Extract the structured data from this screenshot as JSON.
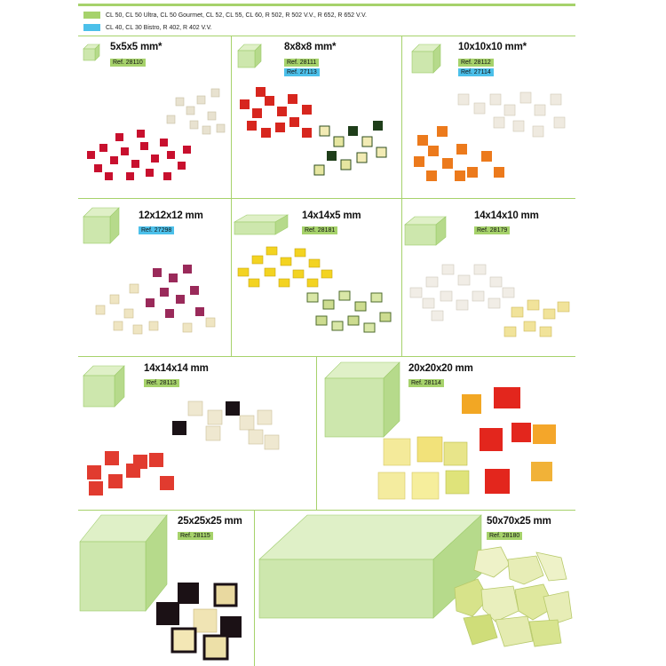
{
  "legend": [
    {
      "color": "#a6d26b",
      "text": "CL 50, CL 50 Ultra, CL 50 Gourmet, CL 52, CL 55, CL 60, R 502, R 502 V.V., R 652, R 652 V.V."
    },
    {
      "color": "#4cc0ea",
      "text": "CL 40, CL 30 Bistro, R 402, R 402 V.V."
    }
  ],
  "cells": [
    {
      "id": "c1",
      "size": "5x5x5 mm*",
      "refs": [
        {
          "text": "Ref. 28110",
          "color": "green"
        }
      ],
      "produce": "red pepper and white root dice"
    },
    {
      "id": "c2",
      "size": "8x8x8 mm*",
      "refs": [
        {
          "text": "Ref. 28111",
          "color": "green"
        },
        {
          "text": "Ref. 27113",
          "color": "blue"
        }
      ],
      "produce": "red pepper and zucchini dice"
    },
    {
      "id": "c3",
      "size": "10x10x10 mm*",
      "refs": [
        {
          "text": "Ref. 28112",
          "color": "green"
        },
        {
          "text": "Ref. 27114",
          "color": "blue"
        }
      ],
      "produce": "carrot and celeriac dice"
    },
    {
      "id": "c4",
      "size": "12x12x12 mm",
      "refs": [
        {
          "text": "Ref. 27298",
          "color": "blue"
        }
      ],
      "produce": "red onion and potato dice"
    },
    {
      "id": "c5",
      "size": "14x14x5 mm",
      "refs": [
        {
          "text": "Ref. 28181",
          "color": "green"
        }
      ],
      "produce": "yellow pepper and zucchini dice"
    },
    {
      "id": "c6",
      "size": "14x14x10 mm",
      "refs": [
        {
          "text": "Ref. 28179",
          "color": "green"
        }
      ],
      "produce": "celeriac and potato dice"
    },
    {
      "id": "c7",
      "size": "14x14x14 mm",
      "refs": [
        {
          "text": "Ref. 28113",
          "color": "green"
        }
      ],
      "produce": "tomato and eggplant dice"
    },
    {
      "id": "c8",
      "size": "20x20x20 mm",
      "refs": [
        {
          "text": "Ref. 28114",
          "color": "green"
        }
      ],
      "produce": "melon, pineapple and pepper dice"
    },
    {
      "id": "c9",
      "size": "25x25x25 mm",
      "refs": [
        {
          "text": "Ref. 28115",
          "color": "green"
        }
      ],
      "produce": "eggplant cubes"
    },
    {
      "id": "c10",
      "size": "50x70x25 mm",
      "refs": [
        {
          "text": "Ref. 28180",
          "color": "green"
        }
      ],
      "produce": "lettuce pieces"
    }
  ],
  "colors": {
    "green": "#a6d26b",
    "blue": "#4cc0ea",
    "cube_face": "#cde7ad",
    "cube_top": "#dff0c7",
    "cube_side": "#b6da8b"
  }
}
